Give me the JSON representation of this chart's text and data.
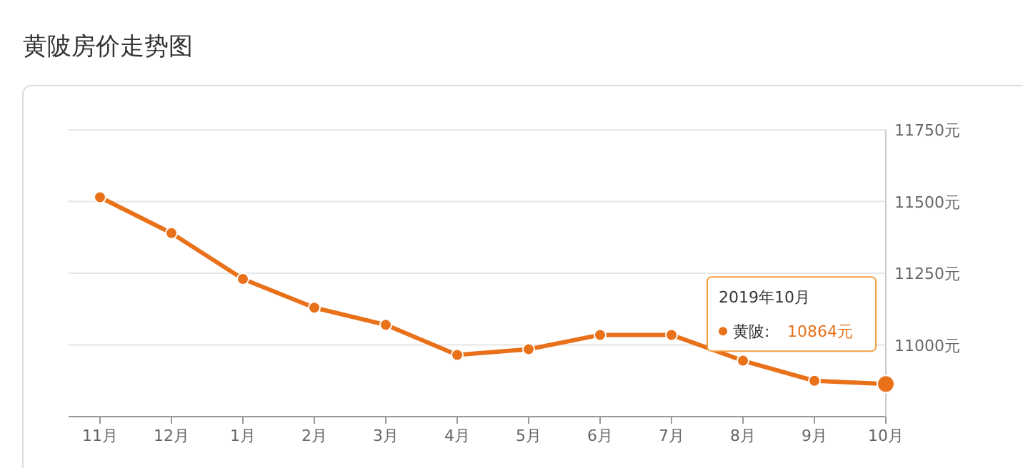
{
  "chart_data": {
    "type": "line",
    "title": "黄陂房价走势图",
    "categories": [
      "11月",
      "12月",
      "1月",
      "2月",
      "3月",
      "4月",
      "5月",
      "6月",
      "7月",
      "8月",
      "9月",
      "10月"
    ],
    "series": [
      {
        "name": "黄陂:",
        "color": "#e8711a",
        "values": [
          11515,
          11390,
          11230,
          11130,
          11070,
          10965,
          10985,
          11035,
          11035,
          10945,
          10875,
          10864
        ]
      }
    ],
    "ylim": [
      10750,
      11750
    ],
    "yticks": [
      {
        "value": 11000,
        "label": "11000元"
      },
      {
        "value": 11250,
        "label": "11250元"
      },
      {
        "value": 11500,
        "label": "11500元"
      },
      {
        "value": 11750,
        "label": "11750元"
      }
    ],
    "grid": "y",
    "marker": "circle",
    "annotations": [
      "2019年10月",
      "10864元"
    ]
  }
}
